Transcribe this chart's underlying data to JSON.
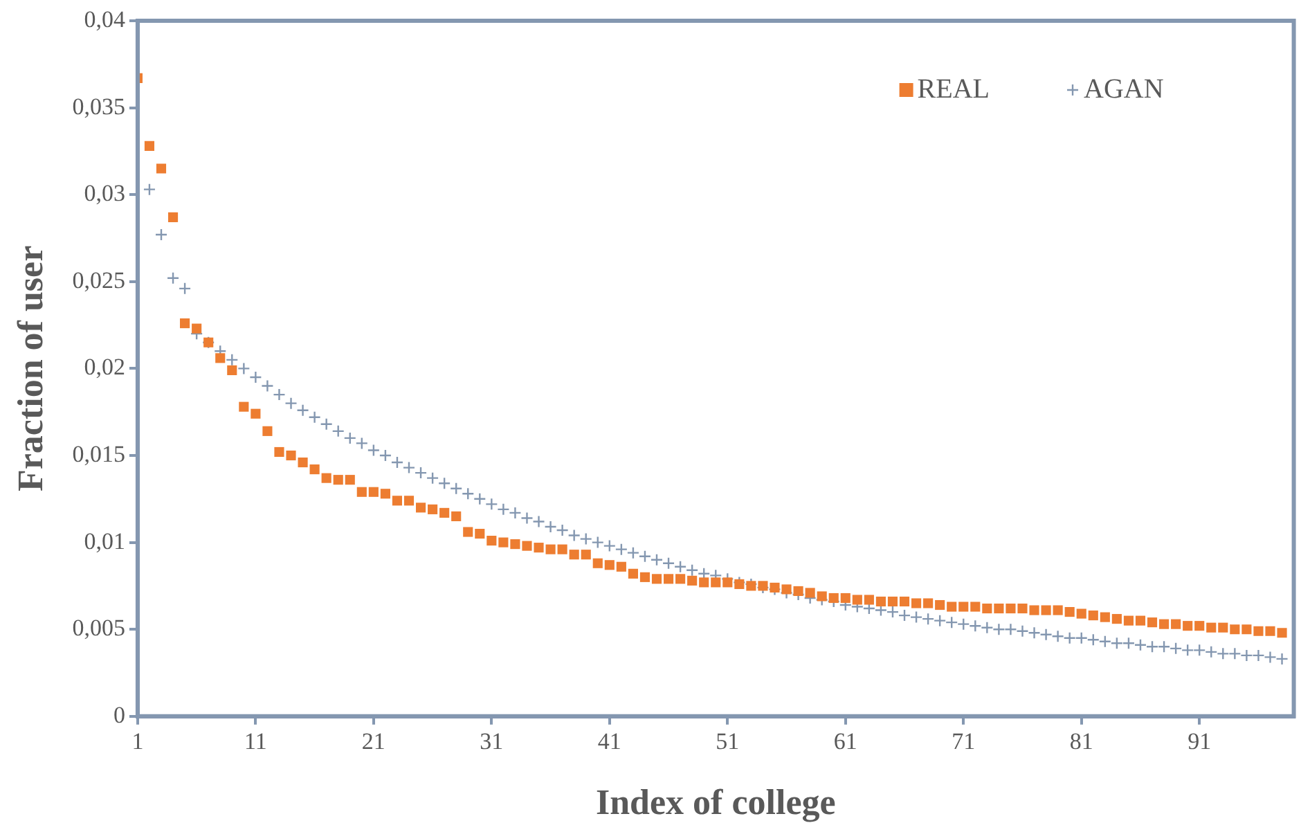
{
  "chart_data": {
    "type": "scatter",
    "xlabel": "Index of college",
    "ylabel": "Fraction of user",
    "xlim": [
      1,
      99
    ],
    "xticks": [
      1,
      11,
      21,
      31,
      41,
      51,
      61,
      71,
      81,
      91
    ],
    "ylim": [
      0,
      0.04
    ],
    "yticks": [
      {
        "value": 0,
        "label": "0"
      },
      {
        "value": 0.005,
        "label": "0,005"
      },
      {
        "value": 0.01,
        "label": "0,01"
      },
      {
        "value": 0.015,
        "label": "0,015"
      },
      {
        "value": 0.02,
        "label": "0,02"
      },
      {
        "value": 0.025,
        "label": "0,025"
      },
      {
        "value": 0.03,
        "label": "0,03"
      },
      {
        "value": 0.035,
        "label": "0,035"
      },
      {
        "value": 0.04,
        "label": "0,04"
      }
    ],
    "grid": false,
    "legend": "top right",
    "x": [
      1,
      2,
      3,
      4,
      5,
      6,
      7,
      8,
      9,
      10,
      11,
      12,
      13,
      14,
      15,
      16,
      17,
      18,
      19,
      20,
      21,
      22,
      23,
      24,
      25,
      26,
      27,
      28,
      29,
      30,
      31,
      32,
      33,
      34,
      35,
      36,
      37,
      38,
      39,
      40,
      41,
      42,
      43,
      44,
      45,
      46,
      47,
      48,
      49,
      50,
      51,
      52,
      53,
      54,
      55,
      56,
      57,
      58,
      59,
      60,
      61,
      62,
      63,
      64,
      65,
      66,
      67,
      68,
      69,
      70,
      71,
      72,
      73,
      74,
      75,
      76,
      77,
      78,
      79,
      80,
      81,
      82,
      83,
      84,
      85,
      86,
      87,
      88,
      89,
      90,
      91,
      92,
      93,
      94,
      95,
      96,
      97,
      98
    ],
    "series": [
      {
        "name": "REAL",
        "color": "#ed7d31",
        "marker": "square",
        "values": [
          0.0367,
          0.0328,
          0.0315,
          0.0287,
          0.0226,
          0.0223,
          0.0215,
          0.0206,
          0.0199,
          0.0178,
          0.0174,
          0.0164,
          0.0152,
          0.015,
          0.0146,
          0.0142,
          0.0137,
          0.0136,
          0.0136,
          0.0129,
          0.0129,
          0.0128,
          0.0124,
          0.0124,
          0.012,
          0.0119,
          0.0117,
          0.0115,
          0.0106,
          0.0105,
          0.0101,
          0.01,
          0.0099,
          0.0098,
          0.0097,
          0.0096,
          0.0096,
          0.0093,
          0.0093,
          0.0088,
          0.0087,
          0.0086,
          0.0082,
          0.008,
          0.0079,
          0.0079,
          0.0079,
          0.0078,
          0.0077,
          0.0077,
          0.0077,
          0.0076,
          0.0075,
          0.0075,
          0.0074,
          0.0073,
          0.0072,
          0.0071,
          0.0069,
          0.0068,
          0.0068,
          0.0067,
          0.0067,
          0.0066,
          0.0066,
          0.0066,
          0.0065,
          0.0065,
          0.0064,
          0.0063,
          0.0063,
          0.0063,
          0.0062,
          0.0062,
          0.0062,
          0.0062,
          0.0061,
          0.0061,
          0.0061,
          0.006,
          0.0059,
          0.0058,
          0.0057,
          0.0056,
          0.0055,
          0.0055,
          0.0054,
          0.0053,
          0.0053,
          0.0052,
          0.0052,
          0.0051,
          0.0051,
          0.005,
          0.005,
          0.0049,
          0.0049,
          0.0048
        ]
      },
      {
        "name": "AGAN",
        "color": "#8497b0",
        "marker": "cross",
        "values": [
          null,
          0.0303,
          0.0277,
          0.0252,
          0.0246,
          0.022,
          0.0215,
          0.021,
          0.0205,
          0.02,
          0.0195,
          0.019,
          0.0185,
          0.018,
          0.0176,
          0.0172,
          0.0168,
          0.0164,
          0.016,
          0.0157,
          0.0153,
          0.015,
          0.0146,
          0.0143,
          0.014,
          0.0137,
          0.0134,
          0.0131,
          0.0128,
          0.0125,
          0.0122,
          0.0119,
          0.0117,
          0.0114,
          0.0112,
          0.0109,
          0.0107,
          0.0104,
          0.0102,
          0.01,
          0.0098,
          0.0096,
          0.0094,
          0.0092,
          0.009,
          0.0088,
          0.0086,
          0.0084,
          0.0082,
          0.0081,
          0.0079,
          0.0077,
          0.0076,
          0.0074,
          0.0073,
          0.0071,
          0.007,
          0.0068,
          0.0067,
          0.0066,
          0.0064,
          0.0063,
          0.0062,
          0.0061,
          0.006,
          0.0058,
          0.0057,
          0.0056,
          0.0055,
          0.0054,
          0.0053,
          0.0052,
          0.0051,
          0.005,
          0.005,
          0.0049,
          0.0048,
          0.0047,
          0.0046,
          0.0045,
          0.0045,
          0.0044,
          0.0043,
          0.0042,
          0.0042,
          0.0041,
          0.004,
          0.004,
          0.0039,
          0.0038,
          0.0038,
          0.0037,
          0.0036,
          0.0036,
          0.0035,
          0.0035,
          0.0034,
          0.0033
        ]
      }
    ]
  }
}
